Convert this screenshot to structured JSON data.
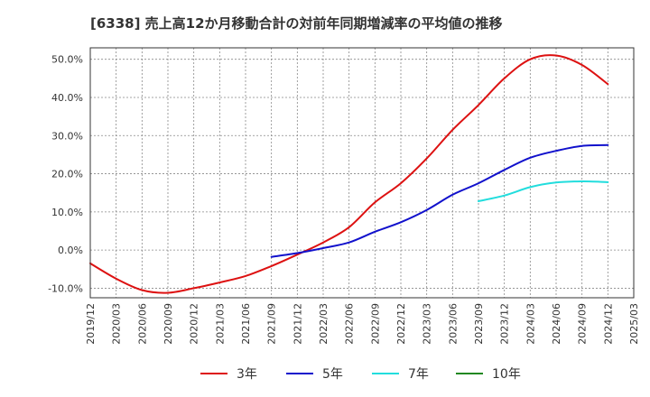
{
  "chart_data": {
    "type": "line",
    "title": "[6338]  売上高12か月移動合計の対前年同期増減率の平均値の推移",
    "xlabel": "",
    "ylabel": "",
    "x_ticks": [
      "2019/12",
      "2020/03",
      "2020/06",
      "2020/09",
      "2020/12",
      "2021/03",
      "2021/06",
      "2021/09",
      "2021/12",
      "2022/03",
      "2022/06",
      "2022/09",
      "2022/12",
      "2023/03",
      "2023/06",
      "2023/09",
      "2023/12",
      "2024/03",
      "2024/06",
      "2024/09",
      "2024/12",
      "2025/03"
    ],
    "y_ticks": [
      "-10.0%",
      "0.0%",
      "10.0%",
      "20.0%",
      "30.0%",
      "40.0%",
      "50.0%"
    ],
    "ylim": [
      -12.5,
      53
    ],
    "grid": true,
    "legend_position": "bottom",
    "series": [
      {
        "name": "3年",
        "color": "#dd1111",
        "x": [
          "2019/12",
          "2020/03",
          "2020/06",
          "2020/09",
          "2020/12",
          "2021/03",
          "2021/06",
          "2021/09",
          "2021/12",
          "2022/03",
          "2022/06",
          "2022/09",
          "2022/12",
          "2023/03",
          "2023/06",
          "2023/09",
          "2023/12",
          "2024/03",
          "2024/06",
          "2024/09",
          "2024/12"
        ],
        "values": [
          -3.5,
          -7.5,
          -10.5,
          -11.2,
          -10.0,
          -8.5,
          -6.8,
          -4.2,
          -1.2,
          2.0,
          6.0,
          12.5,
          17.5,
          24.0,
          31.5,
          38.0,
          45.0,
          50.0,
          51.0,
          48.5,
          43.5
        ]
      },
      {
        "name": "5年",
        "color": "#1111cc",
        "x": [
          "2021/09",
          "2021/12",
          "2022/03",
          "2022/06",
          "2022/09",
          "2022/12",
          "2023/03",
          "2023/06",
          "2023/09",
          "2023/12",
          "2024/03",
          "2024/06",
          "2024/09",
          "2024/12"
        ],
        "values": [
          -1.8,
          -0.8,
          0.5,
          2.0,
          4.8,
          7.3,
          10.5,
          14.5,
          17.5,
          21.0,
          24.2,
          26.0,
          27.3,
          27.5
        ]
      },
      {
        "name": "7年",
        "color": "#22dddd",
        "x": [
          "2023/09",
          "2023/12",
          "2024/03",
          "2024/06",
          "2024/09",
          "2024/12"
        ],
        "values": [
          12.8,
          14.3,
          16.5,
          17.7,
          18.0,
          17.8
        ]
      },
      {
        "name": "10年",
        "color": "#228822",
        "x": [],
        "values": []
      }
    ]
  }
}
